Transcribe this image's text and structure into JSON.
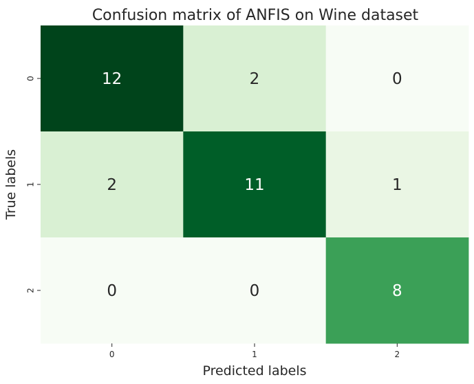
{
  "chart_data": {
    "type": "heatmap",
    "title": "Confusion matrix of ANFIS on Wine dataset",
    "xlabel": "Predicted labels",
    "ylabel": "True labels",
    "x_categories": [
      "0",
      "1",
      "2"
    ],
    "y_categories": [
      "0",
      "1",
      "2"
    ],
    "values": [
      [
        12,
        2,
        0
      ],
      [
        2,
        11,
        1
      ],
      [
        0,
        0,
        8
      ]
    ],
    "colormap": "Greens",
    "value_range": [
      0,
      12
    ],
    "colorbar": false,
    "grid": false,
    "annotation_colors": {
      "dark_text": "#262626",
      "light_text": "#ffffff"
    },
    "cell_colors": [
      [
        "#00441b",
        "#d9f0d3",
        "#f7fcf5"
      ],
      [
        "#d9f0d3",
        "#005e28",
        "#eaf6e4"
      ],
      [
        "#f7fcf5",
        "#f7fcf5",
        "#3ba057"
      ]
    ]
  }
}
